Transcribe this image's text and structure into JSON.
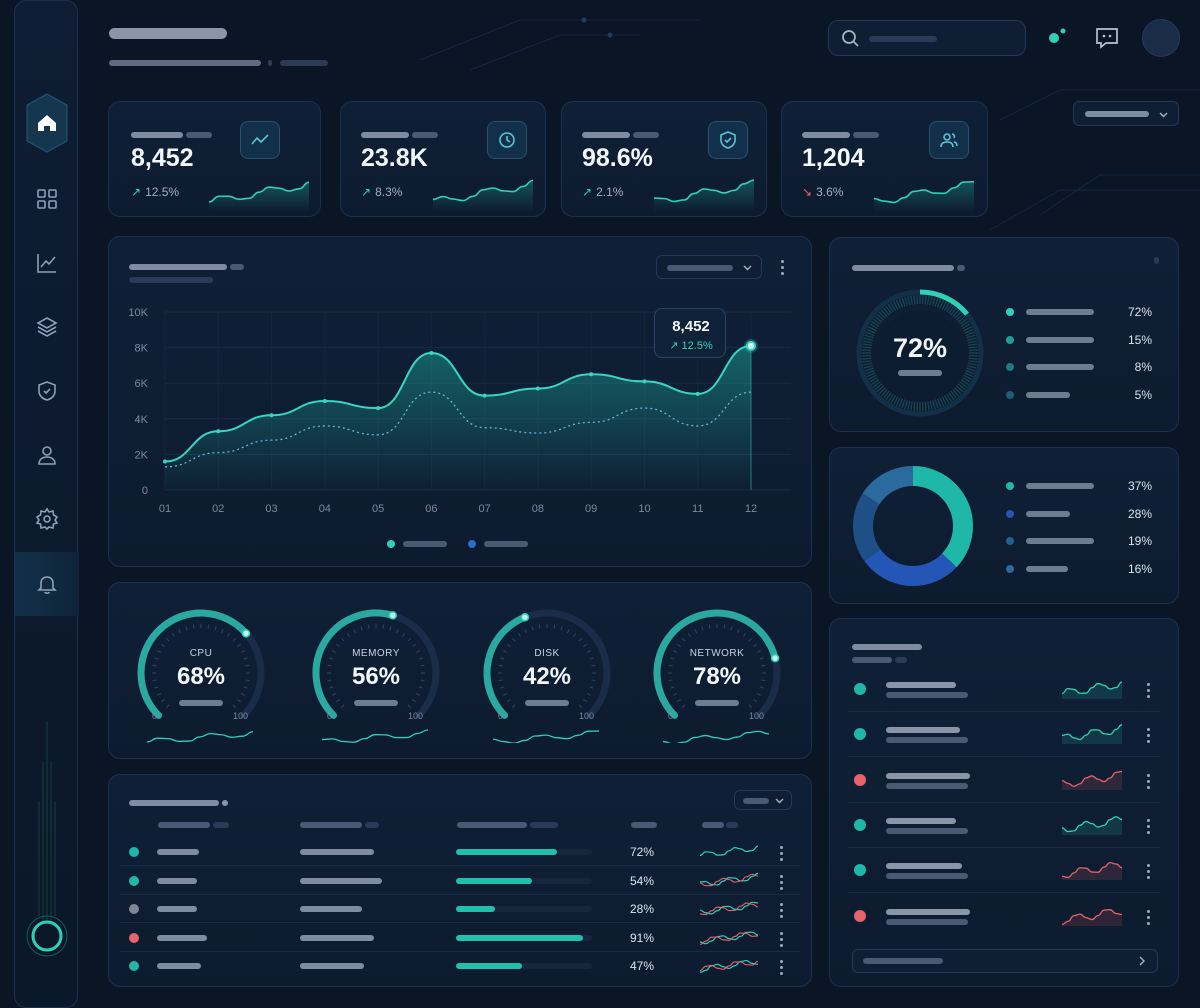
{
  "kpis": [
    {
      "value": "8,452",
      "change": "12.5%",
      "trend": "up",
      "icon": "trend-up-icon"
    },
    {
      "value": "23.8K",
      "change": "8.3%",
      "trend": "up",
      "icon": "clock-icon"
    },
    {
      "value": "98.6%",
      "change": "2.1%",
      "trend": "up",
      "icon": "shield-check-icon"
    },
    {
      "value": "1,204",
      "change": "3.6%",
      "trend": "down",
      "icon": "users-icon"
    }
  ],
  "main_chart": {
    "tooltip_value": "8,452",
    "tooltip_change": "12.5%",
    "chart_data": {
      "type": "area",
      "categories": [
        "01",
        "02",
        "03",
        "04",
        "05",
        "06",
        "07",
        "08",
        "09",
        "10",
        "11",
        "12"
      ],
      "yticks": [
        "0",
        "2K",
        "4K",
        "6K",
        "8K",
        "10K"
      ],
      "ylim": [
        0,
        10000
      ],
      "series": [
        {
          "values": [
            1600,
            3300,
            4200,
            5000,
            4600,
            7700,
            5300,
            5700,
            6500,
            6100,
            5400,
            8100
          ]
        },
        {
          "values": [
            1300,
            2100,
            2800,
            3600,
            3100,
            5500,
            3500,
            3200,
            3800,
            4600,
            3600,
            5500
          ]
        }
      ]
    }
  },
  "radial": {
    "center": "72%",
    "items": [
      "72%",
      "15%",
      "8%",
      "5%"
    ],
    "fraction": 0.72
  },
  "donut": {
    "items": [
      "37%",
      "28%",
      "19%",
      "16%"
    ],
    "colors": [
      "#1fb8a8",
      "#2456b8",
      "#1e4f86",
      "#2a6a9e"
    ]
  },
  "gauges": [
    {
      "label": "CPU",
      "value": "68%",
      "frac": 0.68,
      "min": "0",
      "max": "100"
    },
    {
      "label": "MEMORY",
      "value": "56%",
      "frac": 0.56,
      "min": "0",
      "max": "100"
    },
    {
      "label": "DISK",
      "value": "42%",
      "frac": 0.42,
      "min": "0",
      "max": "100"
    },
    {
      "label": "NETWORK",
      "value": "78%",
      "frac": 0.78,
      "min": "0",
      "max": "100"
    }
  ],
  "table_rows": [
    {
      "status": "#1fb8a8",
      "pct": "72%",
      "frac": 0.72
    },
    {
      "status": "#1fb8a8",
      "pct": "54%",
      "frac": 0.54
    },
    {
      "status": "#7d8796",
      "pct": "28%",
      "frac": 0.28
    },
    {
      "status": "#e8636a",
      "pct": "91%",
      "frac": 0.91
    },
    {
      "status": "#1fb8a8",
      "pct": "47%",
      "frac": 0.47
    }
  ],
  "activity": [
    {
      "status": "#1fb8a8",
      "spark": "#2fd0b8"
    },
    {
      "status": "#1fb8a8",
      "spark": "#2fd0b8"
    },
    {
      "status": "#e8636a",
      "spark": "#e8636a"
    },
    {
      "status": "#1fb8a8",
      "spark": "#2fd0b8"
    },
    {
      "status": "#1fb8a8",
      "spark": "#e8636a"
    },
    {
      "status": "#e8636a",
      "spark": "#e8636a"
    }
  ]
}
